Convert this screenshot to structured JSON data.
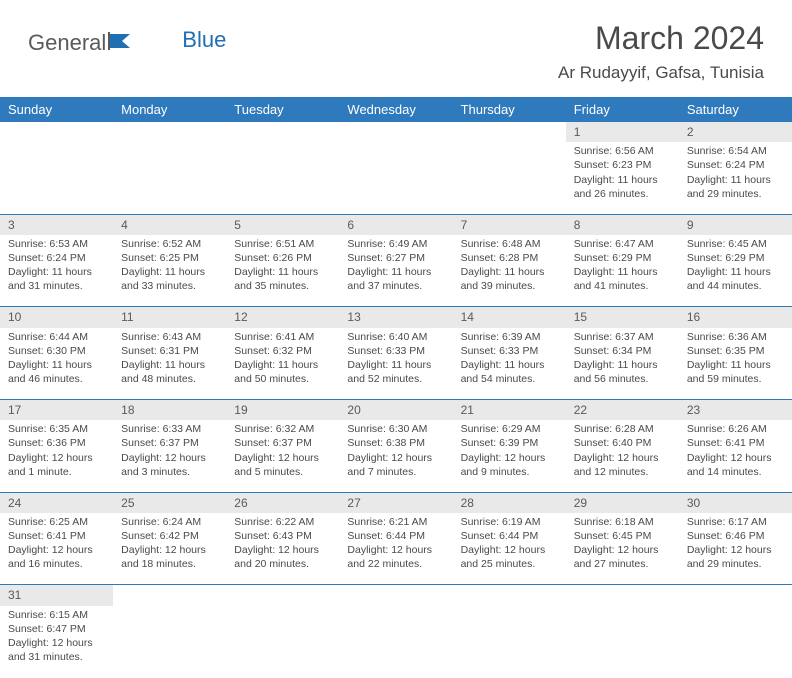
{
  "logo": {
    "text1": "General",
    "text2": "Blue"
  },
  "title": "March 2024",
  "location": "Ar Rudayyif, Gafsa, Tunisia",
  "colors": {
    "header_bg": "#2f79bd",
    "header_text": "#ffffff",
    "daynum_bg": "#e9e9e9",
    "body_text": "#4a4a4a",
    "rule": "#2f79bd",
    "logo_blue": "#1f6fb2"
  },
  "typography": {
    "title_fontsize": 32,
    "location_fontsize": 17,
    "dayheader_fontsize": 13,
    "cell_fontsize": 10.5
  },
  "day_headers": [
    "Sunday",
    "Monday",
    "Tuesday",
    "Wednesday",
    "Thursday",
    "Friday",
    "Saturday"
  ],
  "weeks": [
    [
      null,
      null,
      null,
      null,
      null,
      {
        "n": "1",
        "sr": "Sunrise: 6:56 AM",
        "ss": "Sunset: 6:23 PM",
        "dl": "Daylight: 11 hours and 26 minutes."
      },
      {
        "n": "2",
        "sr": "Sunrise: 6:54 AM",
        "ss": "Sunset: 6:24 PM",
        "dl": "Daylight: 11 hours and 29 minutes."
      }
    ],
    [
      {
        "n": "3",
        "sr": "Sunrise: 6:53 AM",
        "ss": "Sunset: 6:24 PM",
        "dl": "Daylight: 11 hours and 31 minutes."
      },
      {
        "n": "4",
        "sr": "Sunrise: 6:52 AM",
        "ss": "Sunset: 6:25 PM",
        "dl": "Daylight: 11 hours and 33 minutes."
      },
      {
        "n": "5",
        "sr": "Sunrise: 6:51 AM",
        "ss": "Sunset: 6:26 PM",
        "dl": "Daylight: 11 hours and 35 minutes."
      },
      {
        "n": "6",
        "sr": "Sunrise: 6:49 AM",
        "ss": "Sunset: 6:27 PM",
        "dl": "Daylight: 11 hours and 37 minutes."
      },
      {
        "n": "7",
        "sr": "Sunrise: 6:48 AM",
        "ss": "Sunset: 6:28 PM",
        "dl": "Daylight: 11 hours and 39 minutes."
      },
      {
        "n": "8",
        "sr": "Sunrise: 6:47 AM",
        "ss": "Sunset: 6:29 PM",
        "dl": "Daylight: 11 hours and 41 minutes."
      },
      {
        "n": "9",
        "sr": "Sunrise: 6:45 AM",
        "ss": "Sunset: 6:29 PM",
        "dl": "Daylight: 11 hours and 44 minutes."
      }
    ],
    [
      {
        "n": "10",
        "sr": "Sunrise: 6:44 AM",
        "ss": "Sunset: 6:30 PM",
        "dl": "Daylight: 11 hours and 46 minutes."
      },
      {
        "n": "11",
        "sr": "Sunrise: 6:43 AM",
        "ss": "Sunset: 6:31 PM",
        "dl": "Daylight: 11 hours and 48 minutes."
      },
      {
        "n": "12",
        "sr": "Sunrise: 6:41 AM",
        "ss": "Sunset: 6:32 PM",
        "dl": "Daylight: 11 hours and 50 minutes."
      },
      {
        "n": "13",
        "sr": "Sunrise: 6:40 AM",
        "ss": "Sunset: 6:33 PM",
        "dl": "Daylight: 11 hours and 52 minutes."
      },
      {
        "n": "14",
        "sr": "Sunrise: 6:39 AM",
        "ss": "Sunset: 6:33 PM",
        "dl": "Daylight: 11 hours and 54 minutes."
      },
      {
        "n": "15",
        "sr": "Sunrise: 6:37 AM",
        "ss": "Sunset: 6:34 PM",
        "dl": "Daylight: 11 hours and 56 minutes."
      },
      {
        "n": "16",
        "sr": "Sunrise: 6:36 AM",
        "ss": "Sunset: 6:35 PM",
        "dl": "Daylight: 11 hours and 59 minutes."
      }
    ],
    [
      {
        "n": "17",
        "sr": "Sunrise: 6:35 AM",
        "ss": "Sunset: 6:36 PM",
        "dl": "Daylight: 12 hours and 1 minute."
      },
      {
        "n": "18",
        "sr": "Sunrise: 6:33 AM",
        "ss": "Sunset: 6:37 PM",
        "dl": "Daylight: 12 hours and 3 minutes."
      },
      {
        "n": "19",
        "sr": "Sunrise: 6:32 AM",
        "ss": "Sunset: 6:37 PM",
        "dl": "Daylight: 12 hours and 5 minutes."
      },
      {
        "n": "20",
        "sr": "Sunrise: 6:30 AM",
        "ss": "Sunset: 6:38 PM",
        "dl": "Daylight: 12 hours and 7 minutes."
      },
      {
        "n": "21",
        "sr": "Sunrise: 6:29 AM",
        "ss": "Sunset: 6:39 PM",
        "dl": "Daylight: 12 hours and 9 minutes."
      },
      {
        "n": "22",
        "sr": "Sunrise: 6:28 AM",
        "ss": "Sunset: 6:40 PM",
        "dl": "Daylight: 12 hours and 12 minutes."
      },
      {
        "n": "23",
        "sr": "Sunrise: 6:26 AM",
        "ss": "Sunset: 6:41 PM",
        "dl": "Daylight: 12 hours and 14 minutes."
      }
    ],
    [
      {
        "n": "24",
        "sr": "Sunrise: 6:25 AM",
        "ss": "Sunset: 6:41 PM",
        "dl": "Daylight: 12 hours and 16 minutes."
      },
      {
        "n": "25",
        "sr": "Sunrise: 6:24 AM",
        "ss": "Sunset: 6:42 PM",
        "dl": "Daylight: 12 hours and 18 minutes."
      },
      {
        "n": "26",
        "sr": "Sunrise: 6:22 AM",
        "ss": "Sunset: 6:43 PM",
        "dl": "Daylight: 12 hours and 20 minutes."
      },
      {
        "n": "27",
        "sr": "Sunrise: 6:21 AM",
        "ss": "Sunset: 6:44 PM",
        "dl": "Daylight: 12 hours and 22 minutes."
      },
      {
        "n": "28",
        "sr": "Sunrise: 6:19 AM",
        "ss": "Sunset: 6:44 PM",
        "dl": "Daylight: 12 hours and 25 minutes."
      },
      {
        "n": "29",
        "sr": "Sunrise: 6:18 AM",
        "ss": "Sunset: 6:45 PM",
        "dl": "Daylight: 12 hours and 27 minutes."
      },
      {
        "n": "30",
        "sr": "Sunrise: 6:17 AM",
        "ss": "Sunset: 6:46 PM",
        "dl": "Daylight: 12 hours and 29 minutes."
      }
    ],
    [
      {
        "n": "31",
        "sr": "Sunrise: 6:15 AM",
        "ss": "Sunset: 6:47 PM",
        "dl": "Daylight: 12 hours and 31 minutes."
      },
      null,
      null,
      null,
      null,
      null,
      null
    ]
  ]
}
